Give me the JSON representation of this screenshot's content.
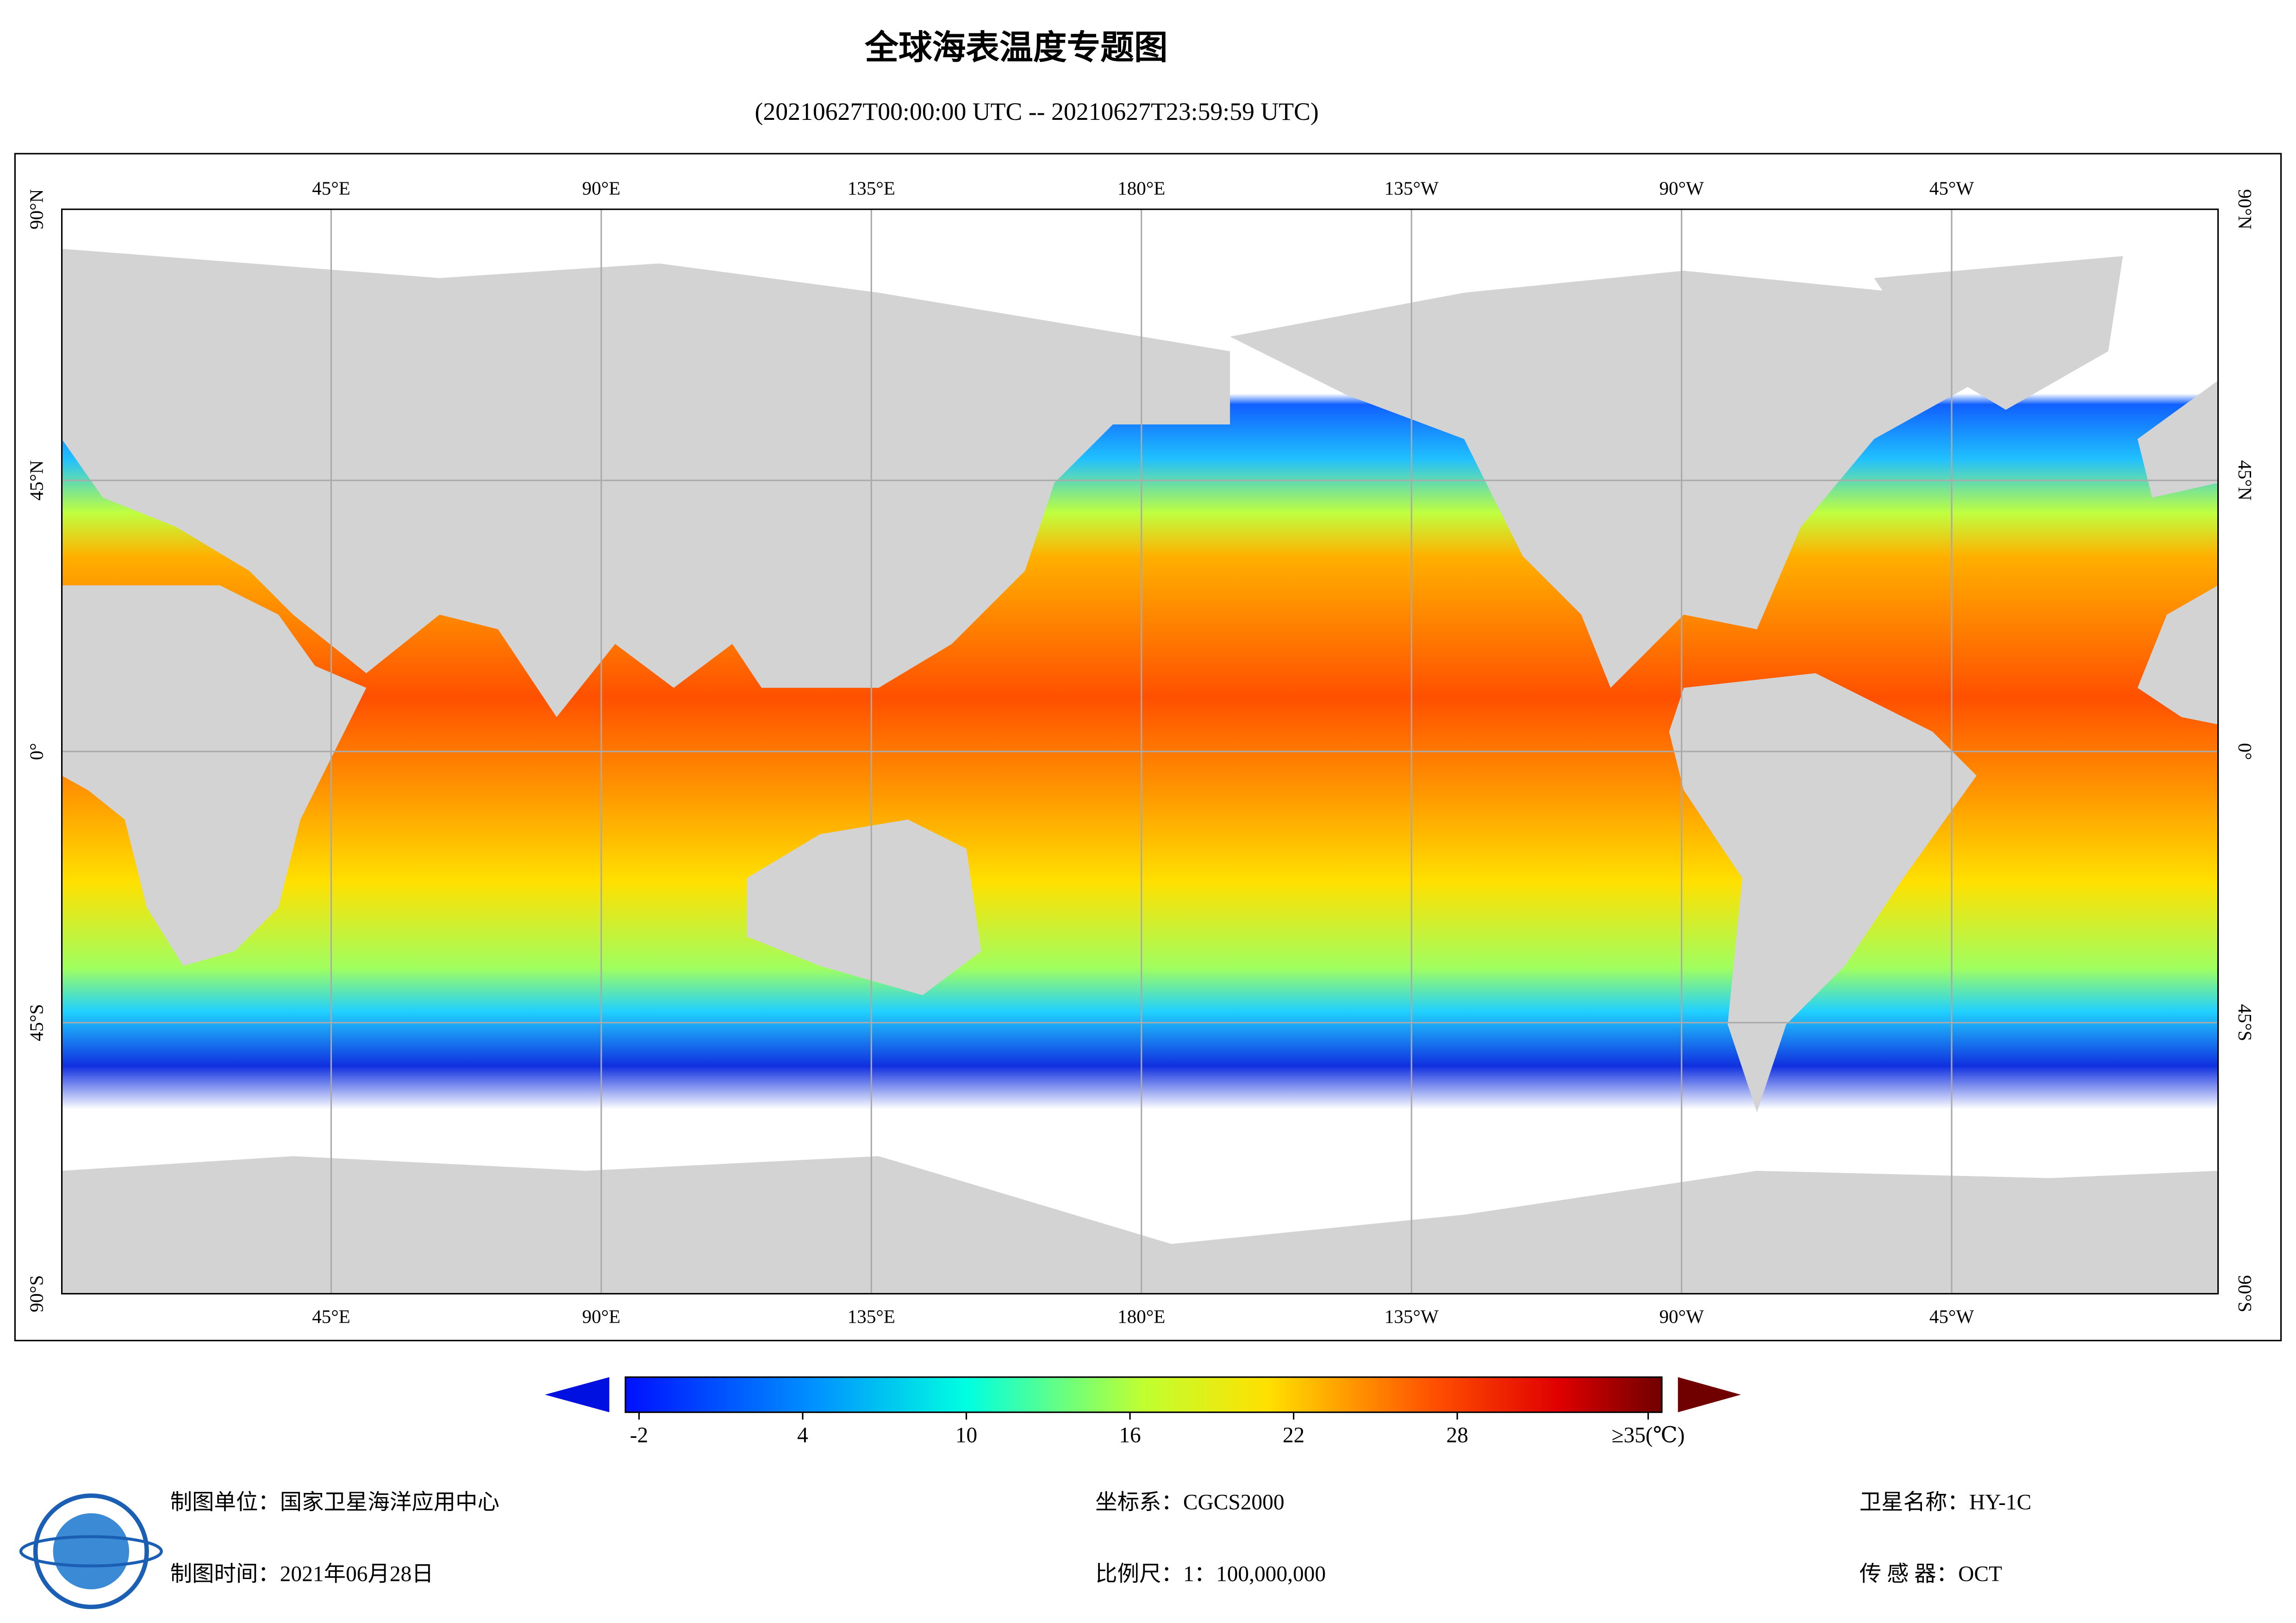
{
  "header": {
    "title": "全球海表温度专题图",
    "time_range": "(20210627T00:00:00 UTC -- 20210627T23:59:59 UTC)"
  },
  "map": {
    "lon_labels": [
      "45°E",
      "90°E",
      "135°E",
      "180°E",
      "135°W",
      "90°W",
      "45°W"
    ],
    "lat_labels": [
      "90°N",
      "45°N",
      "0°",
      "45°S",
      "90°S"
    ]
  },
  "colorbar": {
    "lim": [
      -2.5,
      35.5
    ],
    "ticks": [
      -2,
      4,
      10,
      16,
      22,
      28,
      {
        "value": 35,
        "label": "≥35(℃)"
      }
    ]
  },
  "footer": {
    "producer": "制图单位：国家卫星海洋应用中心",
    "date": "制图时间：2021年06月28日",
    "crs": "坐标系：CGCS2000",
    "scale": "比例尺：1：100,000,000",
    "satellite": "卫星名称：HY-1C",
    "sensor": "传 感 器：OCT"
  }
}
